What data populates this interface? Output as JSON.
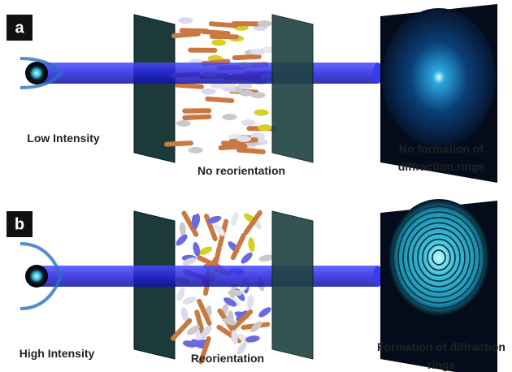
{
  "panels": [
    {
      "label": "a",
      "source_label": "Low Intensity",
      "medium_label": "No reorientation",
      "screen_label": [
        "No formation of",
        "diffraction rings"
      ]
    },
    {
      "label": "b",
      "source_label": "High Intensity",
      "medium_label": "Reorientation",
      "screen_label": [
        "Formation of diffraction",
        "rings"
      ]
    }
  ]
}
